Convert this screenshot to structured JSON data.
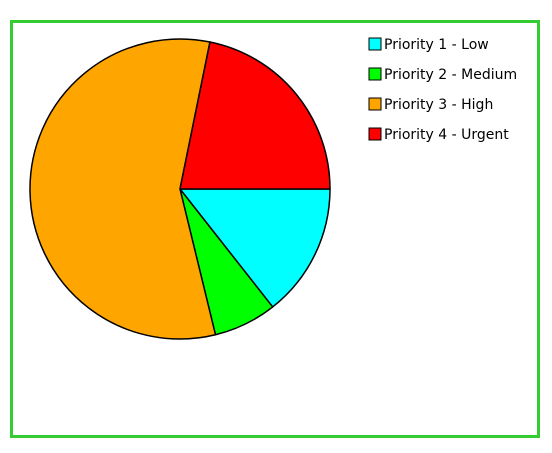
{
  "chart_data": {
    "type": "pie",
    "title": "",
    "legend_position": "top-right",
    "series": [
      {
        "name": "Priority 1 - Low",
        "value": 14.4,
        "color": "#00ffff"
      },
      {
        "name": "Priority 2 - Medium",
        "value": 6.8,
        "color": "#00ff00"
      },
      {
        "name": "Priority 3 - High",
        "value": 57.0,
        "color": "#ffa500"
      },
      {
        "name": "Priority 4 - Urgent",
        "value": 21.8,
        "color": "#ff0000"
      }
    ],
    "start_angle_deg": 0,
    "direction": "clockwise"
  },
  "frame_color": "#33cc33"
}
